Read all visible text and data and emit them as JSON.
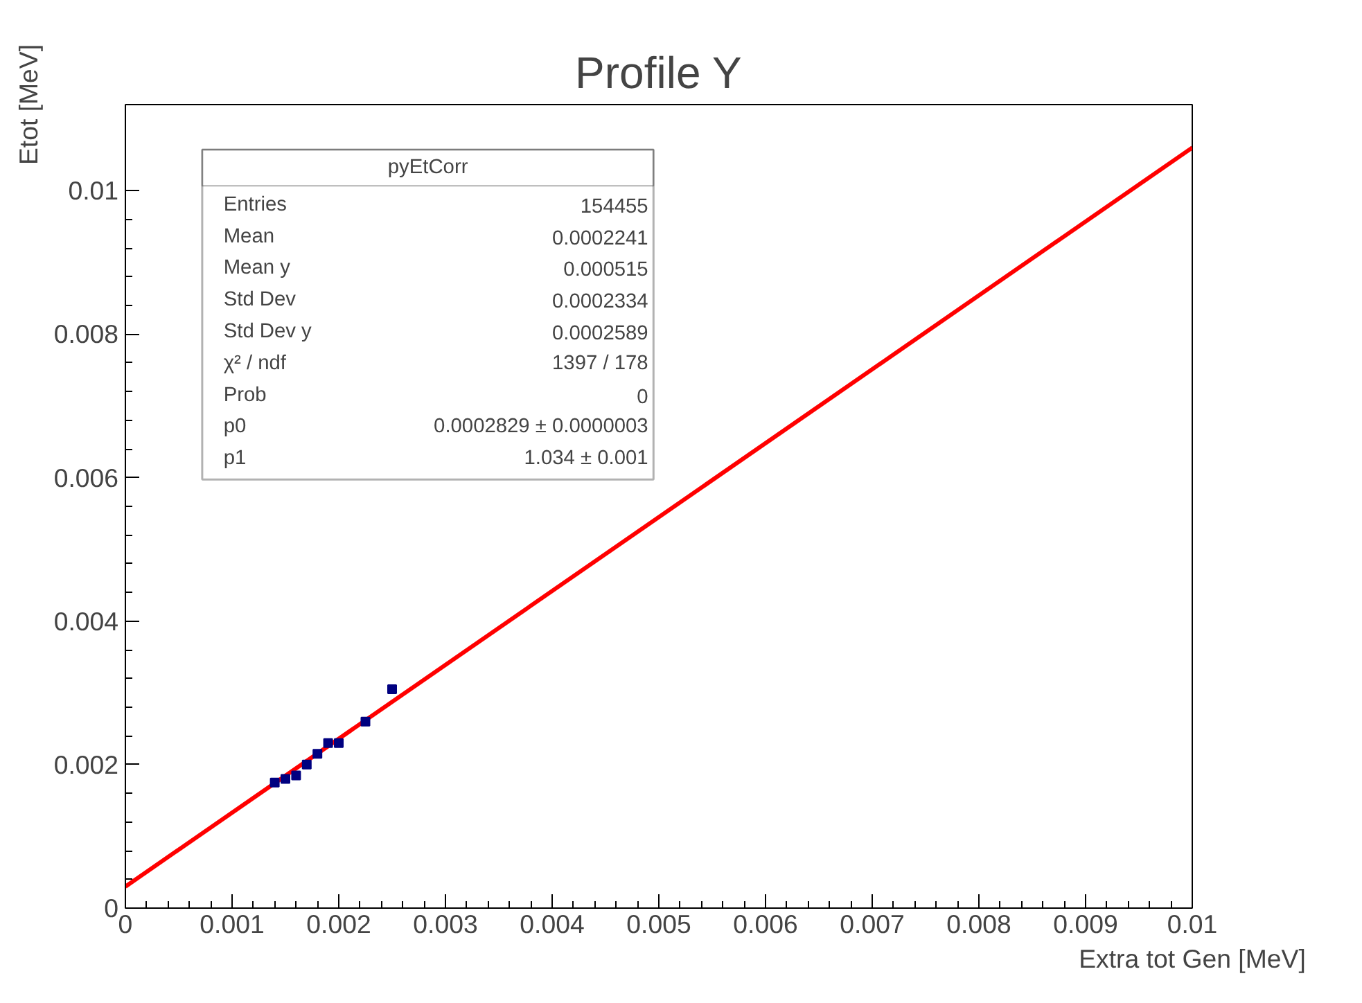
{
  "chart_data": {
    "type": "scatter",
    "title": "Profile Y",
    "xlabel": "Extra tot Gen [MeV]",
    "ylabel": "Etot [MeV]",
    "series": [
      {
        "color": "#000080",
        "marker": "square",
        "x": [
          0.0014,
          0.0015,
          0.0016,
          0.0017,
          0.0018,
          0.0019,
          0.002,
          0.00225,
          0.0025
        ],
        "values": [
          0.00175,
          0.0018,
          0.00185,
          0.002,
          0.00215,
          0.0023,
          0.0023,
          0.0026,
          0.00305
        ]
      },
      {
        "type": "line",
        "color": "#ff0000",
        "x": [
          0,
          0.01
        ],
        "values": [
          0.0003,
          0.0106
        ]
      }
    ],
    "xlim": [
      0,
      0.01
    ],
    "ylim": [
      0,
      0.0112
    ],
    "xticks": [
      0,
      0.001,
      0.002,
      0.003,
      0.004,
      0.005,
      0.006,
      0.007,
      0.008,
      0.009,
      0.01
    ],
    "yticks": [
      0,
      0.002,
      0.004,
      0.006,
      0.008,
      0.01
    ],
    "grid": false,
    "annotations": [
      "pyEtCorr",
      "Entries",
      "154455",
      "Mean",
      "0.0002241",
      "Mean y",
      "0.000515",
      "Std Dev",
      "0.0002334",
      "Std Dev y",
      "0.0002589",
      "χ² / ndf",
      "1397 / 178",
      "Prob",
      "0",
      "p0",
      "0.0002829 ± 0.0000003",
      "p1",
      "1.034 ± 0.001"
    ]
  }
}
